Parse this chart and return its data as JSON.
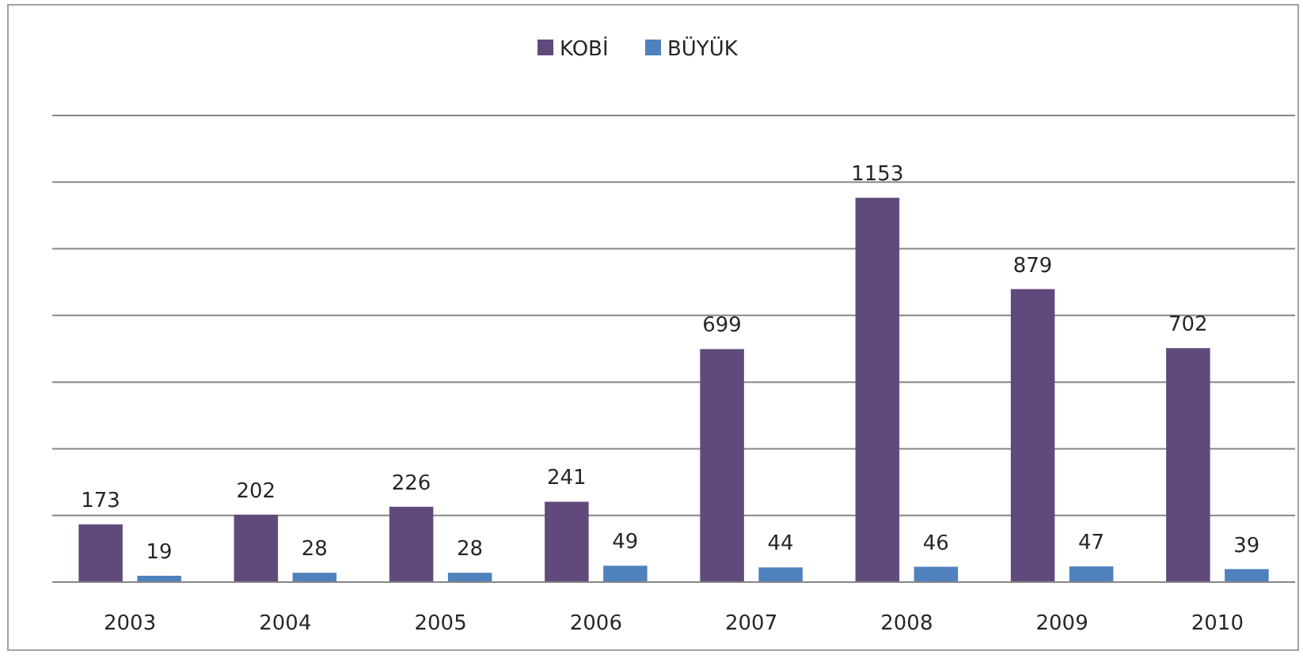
{
  "chart_data": {
    "type": "bar",
    "categories": [
      "2003",
      "2004",
      "2005",
      "2006",
      "2007",
      "2008",
      "2009",
      "2010"
    ],
    "series": [
      {
        "name": "KOBİ",
        "color": "#604a7b",
        "values": [
          173,
          202,
          226,
          241,
          699,
          1153,
          879,
          702
        ]
      },
      {
        "name": "BÜYÜK",
        "color": "#4f81bd",
        "values": [
          19,
          28,
          28,
          49,
          44,
          46,
          47,
          39
        ]
      }
    ],
    "ylim": [
      0,
      1400
    ],
    "yticks": [
      {
        "value": 0,
        "label": null
      },
      {
        "value": 200,
        "label": null
      },
      {
        "value": 400,
        "label": null
      },
      {
        "value": 600,
        "label": null
      },
      {
        "value": 800,
        "label": null
      },
      {
        "value": 1000,
        "label": null
      },
      {
        "value": 1200,
        "label": null
      },
      {
        "value": 1400,
        "label": null
      }
    ],
    "grid": "y",
    "legend": "top",
    "data_labels": true
  }
}
